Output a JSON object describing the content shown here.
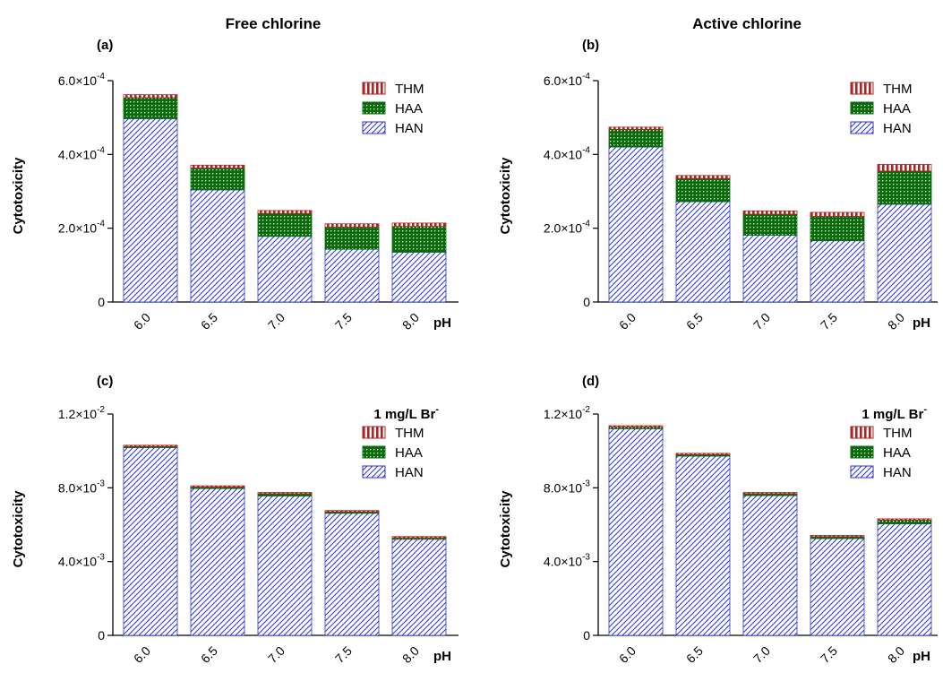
{
  "column_titles": [
    "Free chlorine",
    "Active chlorine"
  ],
  "colors": {
    "THM": "#b22222",
    "HAA": "#0a6b0a",
    "HAN": "#2b35c8",
    "axis": "#000000"
  },
  "chart_data": [
    {
      "type": "bar",
      "stacked": true,
      "panel_label": "(a)",
      "xlabel": "pH",
      "ylabel": "Cytotoxicity",
      "categories": [
        "6.0",
        "6.5",
        "7.0",
        "7.5",
        "8.0"
      ],
      "ylim": [
        0,
        0.0006
      ],
      "yticks": [
        0,
        0.0002,
        0.0004,
        0.0006
      ],
      "ytick_labels": [
        {
          "m": "0",
          "e": ""
        },
        {
          "m": "2.0×10",
          "e": "-4"
        },
        {
          "m": "4.0×10",
          "e": "-4"
        },
        {
          "m": "6.0×10",
          "e": "-4"
        }
      ],
      "legend_position": "top-right",
      "legend_note": "",
      "series": [
        {
          "name": "HAN",
          "values": [
            0.000497,
            0.000304,
            0.000178,
            0.000143,
            0.000135
          ]
        },
        {
          "name": "HAA",
          "values": [
            5.7e-05,
            5.9e-05,
            6.2e-05,
            6e-05,
            7e-05
          ]
        },
        {
          "name": "THM",
          "values": [
            8e-06,
            8e-06,
            8e-06,
            9e-06,
            9e-06
          ]
        }
      ]
    },
    {
      "type": "bar",
      "stacked": true,
      "panel_label": "(b)",
      "xlabel": "pH",
      "ylabel": "Cytotoxicity",
      "categories": [
        "6.0",
        "6.5",
        "7.0",
        "7.5",
        "8.0"
      ],
      "ylim": [
        0,
        0.0006
      ],
      "yticks": [
        0,
        0.0002,
        0.0004,
        0.0006
      ],
      "ytick_labels": [
        {
          "m": "0",
          "e": ""
        },
        {
          "m": "2.0×10",
          "e": "-4"
        },
        {
          "m": "4.0×10",
          "e": "-4"
        },
        {
          "m": "6.0×10",
          "e": "-4"
        }
      ],
      "legend_position": "top-right",
      "legend_note": "",
      "series": [
        {
          "name": "HAN",
          "values": [
            0.00042,
            0.000272,
            0.000181,
            0.000166,
            0.000265
          ]
        },
        {
          "name": "HAA",
          "values": [
            4.8e-05,
            6.3e-05,
            5.7e-05,
            6.6e-05,
            9e-05
          ]
        },
        {
          "name": "THM",
          "values": [
            6e-06,
            8e-06,
            9e-06,
            1.1e-05,
            1.8e-05
          ]
        }
      ]
    },
    {
      "type": "bar",
      "stacked": true,
      "panel_label": "(c)",
      "xlabel": "pH",
      "ylabel": "Cytotoxicity",
      "categories": [
        "6.0",
        "6.5",
        "7.0",
        "7.5",
        "8.0"
      ],
      "ylim": [
        0,
        0.012
      ],
      "yticks": [
        0,
        0.004,
        0.008,
        0.012
      ],
      "ytick_labels": [
        {
          "m": "0",
          "e": ""
        },
        {
          "m": "4.0×10",
          "e": "-3"
        },
        {
          "m": "8.0×10",
          "e": "-3"
        },
        {
          "m": "1.2×10",
          "e": "-2"
        }
      ],
      "legend_position": "top-right",
      "legend_note": {
        "text": "1 mg/L Br",
        "sup": "-"
      },
      "series": [
        {
          "name": "HAN",
          "values": [
            0.01018,
            0.00796,
            0.00756,
            0.00662,
            0.00521
          ]
        },
        {
          "name": "HAA",
          "values": [
            6e-05,
            8e-05,
            0.00012,
            8e-05,
            8e-05
          ]
        },
        {
          "name": "THM",
          "values": [
            2e-05,
            2e-05,
            2e-05,
            2e-05,
            2e-05
          ]
        }
      ]
    },
    {
      "type": "bar",
      "stacked": true,
      "panel_label": "(d)",
      "xlabel": "pH",
      "ylabel": "Cytotoxicity",
      "categories": [
        "6.0",
        "6.5",
        "7.0",
        "7.5",
        "8.0"
      ],
      "ylim": [
        0,
        0.012
      ],
      "yticks": [
        0,
        0.004,
        0.008,
        0.012
      ],
      "ytick_labels": [
        {
          "m": "0",
          "e": ""
        },
        {
          "m": "4.0×10",
          "e": "-3"
        },
        {
          "m": "8.0×10",
          "e": "-3"
        },
        {
          "m": "1.2×10",
          "e": "-2"
        }
      ],
      "legend_position": "top-right",
      "legend_note": {
        "text": "1 mg/L Br",
        "sup": "-"
      },
      "series": [
        {
          "name": "HAN",
          "values": [
            0.0112,
            0.00972,
            0.00758,
            0.00525,
            0.00605
          ]
        },
        {
          "name": "HAA",
          "values": [
            0.0001,
            8e-05,
            0.0001,
            0.0001,
            0.0002
          ]
        },
        {
          "name": "THM",
          "values": [
            4e-05,
            3e-05,
            3e-05,
            3e-05,
            4e-05
          ]
        }
      ]
    }
  ]
}
